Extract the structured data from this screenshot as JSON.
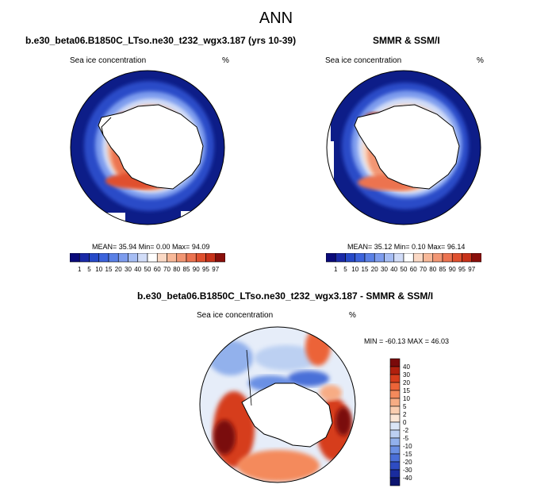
{
  "figure_title": "ANN",
  "panels": [
    {
      "title": "b.e30_beta06.B1850C_LTso.ne30_t232_wgx3.187 (yrs 10-39)",
      "field_label": "Sea ice concentration",
      "units": "%",
      "stats": "MEAN= 35.94  Min=  0.00  Max=  94.09"
    },
    {
      "title": "SMMR & SSM/I",
      "field_label": "Sea ice concentration",
      "units": "%",
      "stats": "MEAN= 35.12  Min=  0.10  Max=  96.14"
    },
    {
      "title": "b.e30_beta06.B1850C_LTso.ne30_t232_wgx3.187 - SMMR & SSM/I",
      "field_label": "Sea ice concentration",
      "units": "%",
      "stats": "MIN = -60.13 MAX =  46.03"
    }
  ],
  "concentration_colorbar": {
    "labels": [
      "1",
      "5",
      "10",
      "15",
      "20",
      "30",
      "40",
      "50",
      "60",
      "70",
      "80",
      "85",
      "90",
      "95",
      "97"
    ],
    "colors": [
      "#0a0a7a",
      "#1a2aa8",
      "#2649c8",
      "#3c63dc",
      "#5a80e6",
      "#7d9cee",
      "#a6bdf4",
      "#d2ddf8",
      "#ffffff",
      "#fbd9c5",
      "#f8b898",
      "#f29673",
      "#ec7350",
      "#e0502e",
      "#c8321a",
      "#8a0f0b"
    ]
  },
  "difference_colorbar": {
    "labels": [
      "40",
      "30",
      "20",
      "15",
      "10",
      "5",
      "2",
      "0",
      "-2",
      "-5",
      "-10",
      "-15",
      "-20",
      "-30",
      "-40"
    ],
    "colors": [
      "#7a0a0a",
      "#b0200e",
      "#d63d1c",
      "#ec6438",
      "#f48a5c",
      "#f7ac84",
      "#fbcdb0",
      "#fde6d6",
      "#dbe6f7",
      "#bcd0f2",
      "#92b1ec",
      "#6b90e4",
      "#4a6fd8",
      "#2e4cc2",
      "#1a2c9e",
      "#0c1470"
    ]
  },
  "chart_data": {
    "type": "heatmap",
    "description_maps": [
      "south polar sea ice concentration (model)",
      "south polar sea ice concentration (observed)",
      "difference (model - observed)"
    ],
    "concentration_levels": [
      1,
      5,
      10,
      15,
      20,
      30,
      40,
      50,
      60,
      70,
      80,
      85,
      90,
      95,
      97
    ],
    "difference_levels": [
      -40,
      -30,
      -20,
      -15,
      -10,
      -5,
      -2,
      0,
      2,
      5,
      10,
      15,
      20,
      30,
      40
    ],
    "model_stats": {
      "mean": 35.94,
      "min": 0.0,
      "max": 94.09
    },
    "obs_stats": {
      "mean": 35.12,
      "min": 0.1,
      "max": 96.14
    },
    "diff_stats": {
      "min": -60.13,
      "max": 46.03
    }
  }
}
